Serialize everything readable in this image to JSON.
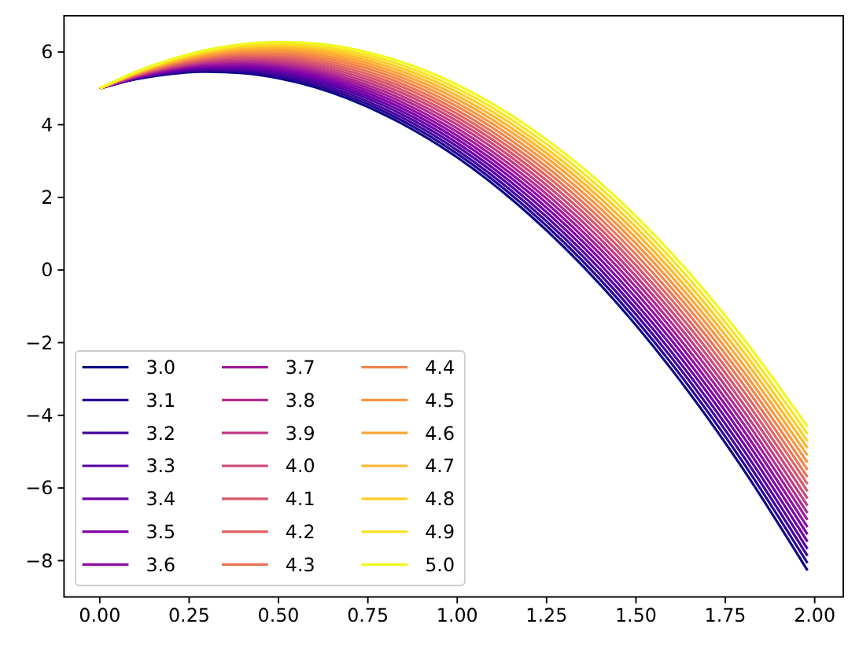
{
  "chart_data": {
    "type": "line",
    "x": [
      0,
      0.1,
      0.2,
      0.3,
      0.4,
      0.5,
      0.6,
      0.8,
      1.0,
      1.2,
      1.4,
      1.6,
      1.8,
      1.98
    ],
    "xlim": [
      -0.1,
      2.08
    ],
    "ylim": [
      -9,
      7
    ],
    "xticks": [
      {
        "value": 0,
        "label": "0.00"
      },
      {
        "value": 0.25,
        "label": "0.25"
      },
      {
        "value": 0.5,
        "label": "0.50"
      },
      {
        "value": 0.75,
        "label": "0.75"
      },
      {
        "value": 1,
        "label": "1.00"
      },
      {
        "value": 1.25,
        "label": "1.25"
      },
      {
        "value": 1.5,
        "label": "1.50"
      },
      {
        "value": 1.75,
        "label": "1.75"
      },
      {
        "value": 2,
        "label": "2.00"
      }
    ],
    "yticks": [
      {
        "value": -8,
        "label": "−8"
      },
      {
        "value": -6,
        "label": "−6"
      },
      {
        "value": -4,
        "label": "−4"
      },
      {
        "value": -2,
        "label": "−2"
      },
      0,
      2,
      4,
      6
    ],
    "legend": "bottom left",
    "series": [
      {
        "name": "3.0",
        "color": "#0d0887",
        "values": [
          5,
          5.25,
          5.4,
          5.46,
          5.42,
          5.28,
          5.04,
          4.26,
          3.1,
          1.54,
          -0.4,
          -2.74,
          -5.48,
          -8.27
        ]
      },
      {
        "name": "3.1",
        "color": "#2a0593",
        "values": [
          5,
          5.26,
          5.42,
          5.49,
          5.46,
          5.33,
          5.1,
          4.34,
          3.2,
          1.66,
          -0.26,
          -2.58,
          -5.3,
          -8.07
        ]
      },
      {
        "name": "3.2",
        "color": "#41049d",
        "values": [
          5,
          5.27,
          5.44,
          5.52,
          5.5,
          5.38,
          5.16,
          4.42,
          3.3,
          1.78,
          -0.12,
          -2.42,
          -5.12,
          -7.87
        ]
      },
      {
        "name": "3.3",
        "color": "#5402a3",
        "values": [
          5,
          5.28,
          5.46,
          5.55,
          5.54,
          5.43,
          5.22,
          4.5,
          3.4,
          1.9,
          0.02,
          -2.26,
          -4.94,
          -7.68
        ]
      },
      {
        "name": "3.4",
        "color": "#6a00a8",
        "values": [
          5,
          5.29,
          5.48,
          5.58,
          5.58,
          5.48,
          5.28,
          4.58,
          3.5,
          2.02,
          0.16,
          -2.1,
          -4.76,
          -7.48
        ]
      },
      {
        "name": "3.5",
        "color": "#7e03a8",
        "values": [
          5,
          5.3,
          5.5,
          5.61,
          5.62,
          5.53,
          5.34,
          4.66,
          3.6,
          2.14,
          0.3,
          -1.94,
          -4.58,
          -7.28
        ]
      },
      {
        "name": "3.6",
        "color": "#8f0da4",
        "values": [
          5,
          5.31,
          5.52,
          5.64,
          5.66,
          5.58,
          5.4,
          4.74,
          3.7,
          2.26,
          0.44,
          -1.78,
          -4.4,
          -7.08
        ]
      },
      {
        "name": "3.7",
        "color": "#a11b9b",
        "values": [
          5,
          5.32,
          5.54,
          5.67,
          5.7,
          5.63,
          5.46,
          4.82,
          3.8,
          2.38,
          0.58,
          -1.62,
          -4.22,
          -6.88
        ]
      },
      {
        "name": "3.8",
        "color": "#b12a90",
        "values": [
          5,
          5.33,
          5.56,
          5.7,
          5.74,
          5.68,
          5.52,
          4.9,
          3.9,
          2.5,
          0.72,
          -1.46,
          -4.04,
          -6.69
        ]
      },
      {
        "name": "3.9",
        "color": "#bf3984",
        "values": [
          5,
          5.34,
          5.58,
          5.73,
          5.78,
          5.73,
          5.58,
          4.98,
          4.0,
          2.62,
          0.86,
          -1.3,
          -3.86,
          -6.49
        ]
      },
      {
        "name": "4.0",
        "color": "#cc4778",
        "values": [
          5,
          5.35,
          5.6,
          5.76,
          5.82,
          5.78,
          5.64,
          5.06,
          4.1,
          2.74,
          1.0,
          -1.14,
          -3.68,
          -6.29
        ]
      },
      {
        "name": "4.1",
        "color": "#d6556d",
        "values": [
          5,
          5.36,
          5.62,
          5.79,
          5.86,
          5.83,
          5.7,
          5.14,
          4.2,
          2.86,
          1.14,
          -0.98,
          -3.5,
          -6.09
        ]
      },
      {
        "name": "4.2",
        "color": "#e16462",
        "values": [
          5,
          5.37,
          5.64,
          5.82,
          5.9,
          5.88,
          5.76,
          5.22,
          4.3,
          2.98,
          1.28,
          -0.82,
          -3.32,
          -5.89
        ]
      },
      {
        "name": "4.3",
        "color": "#ea7457",
        "values": [
          5,
          5.38,
          5.66,
          5.85,
          5.94,
          5.93,
          5.82,
          5.3,
          4.4,
          3.1,
          1.42,
          -0.66,
          -3.14,
          -5.7
        ]
      },
      {
        "name": "4.4",
        "color": "#f2844b",
        "values": [
          5,
          5.39,
          5.68,
          5.88,
          5.98,
          5.98,
          5.88,
          5.38,
          4.5,
          3.22,
          1.56,
          -0.5,
          -2.96,
          -5.5
        ]
      },
      {
        "name": "4.5",
        "color": "#f89540",
        "values": [
          5,
          5.4,
          5.7,
          5.91,
          6.02,
          6.03,
          5.94,
          5.46,
          4.6,
          3.34,
          1.7,
          -0.34,
          -2.78,
          -5.3
        ]
      },
      {
        "name": "4.6",
        "color": "#fca636",
        "values": [
          5,
          5.41,
          5.72,
          5.94,
          6.06,
          6.08,
          6.0,
          5.54,
          4.7,
          3.46,
          1.84,
          -0.18,
          -2.6,
          -5.1
        ]
      },
      {
        "name": "4.7",
        "color": "#feb72d",
        "values": [
          5,
          5.42,
          5.74,
          5.97,
          6.1,
          6.13,
          6.06,
          5.62,
          4.8,
          3.58,
          1.98,
          -0.02,
          -2.42,
          -4.9
        ]
      },
      {
        "name": "4.8",
        "color": "#fcce25",
        "values": [
          5,
          5.43,
          5.76,
          6.0,
          6.14,
          6.18,
          6.12,
          5.7,
          4.9,
          3.7,
          2.12,
          0.14,
          -2.24,
          -4.71
        ]
      },
      {
        "name": "4.9",
        "color": "#f7e225",
        "values": [
          5,
          5.44,
          5.78,
          6.03,
          6.18,
          6.23,
          6.18,
          5.78,
          5.0,
          3.82,
          2.26,
          0.3,
          -2.06,
          -4.51
        ]
      },
      {
        "name": "5.0",
        "color": "#f0f921",
        "values": [
          5,
          5.45,
          5.8,
          6.06,
          6.22,
          6.28,
          6.24,
          5.86,
          5.1,
          3.94,
          2.4,
          0.46,
          -1.88,
          -4.31
        ]
      }
    ]
  }
}
